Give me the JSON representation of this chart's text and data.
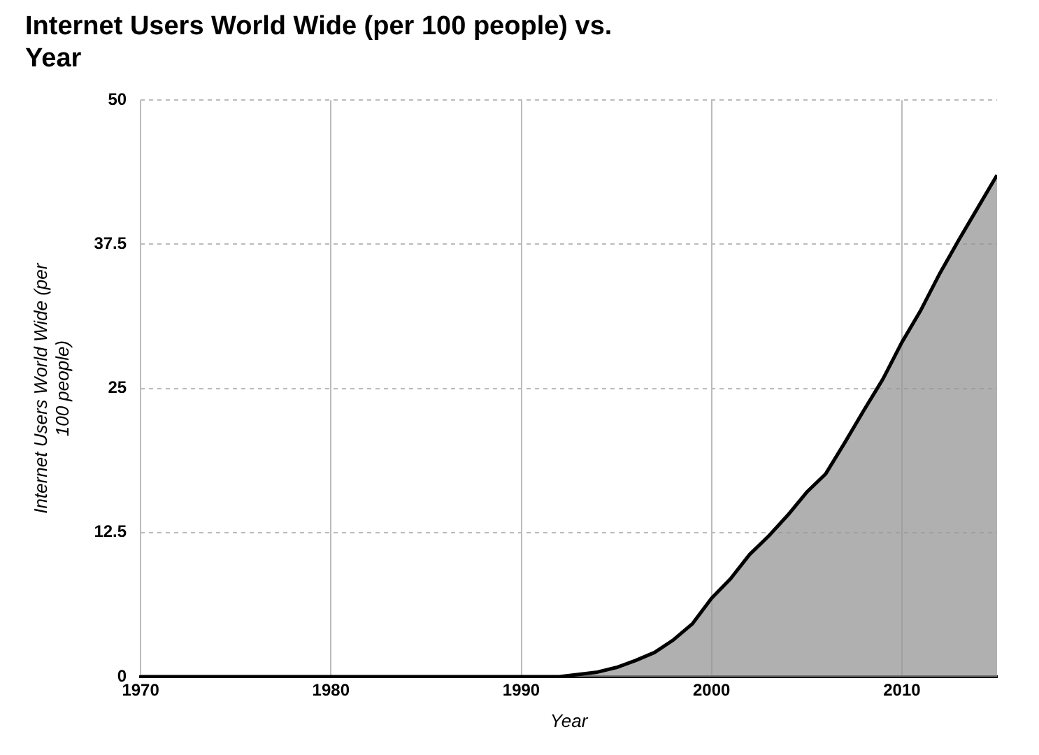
{
  "chart_data": {
    "type": "area",
    "title": "Internet Users World Wide (per 100 people) vs. Year",
    "xlabel": "Year",
    "ylabel": "Internet Users World Wide (per 100 people)",
    "x": [
      1970,
      1975,
      1980,
      1985,
      1990,
      1991,
      1992,
      1993,
      1994,
      1995,
      1996,
      1997,
      1998,
      1999,
      2000,
      2001,
      2002,
      2003,
      2004,
      2005,
      2006,
      2007,
      2008,
      2009,
      2010,
      2011,
      2012,
      2013,
      2014,
      2015
    ],
    "series": [
      {
        "color": "#000000",
        "values": [
          0,
          0,
          0,
          0,
          0,
          0,
          0,
          0.2,
          0.4,
          0.8,
          1.4,
          2.1,
          3.2,
          4.6,
          6.8,
          8.5,
          10.6,
          12.2,
          14,
          16,
          17.6,
          20.3,
          23.1,
          25.8,
          29,
          31.8,
          35,
          37.9,
          40.7,
          43.5
        ]
      }
    ],
    "xlim": [
      1970,
      2015
    ],
    "xticks": [
      1970,
      1980,
      1990,
      2000,
      2010
    ],
    "ylim": [
      0,
      50
    ],
    "yticks": [
      0,
      12.5,
      25,
      37.5,
      50
    ],
    "grid": true,
    "legend": false
  }
}
